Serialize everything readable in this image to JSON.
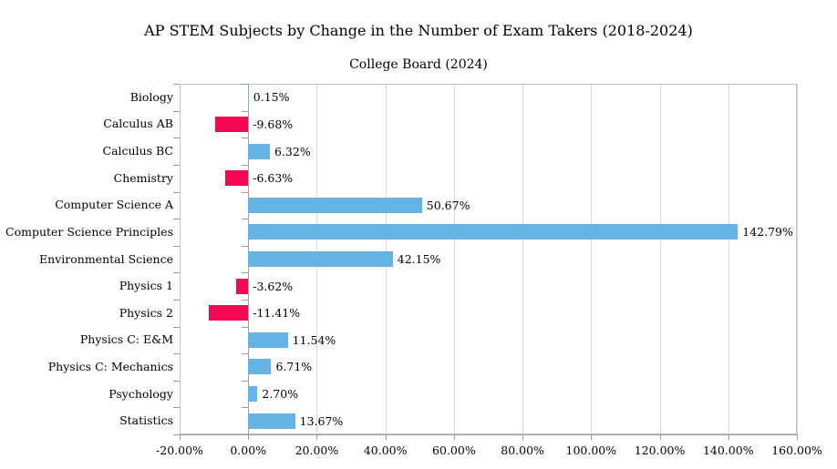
{
  "title": "AP STEM Subjects by Change in the Number of Exam Takers (2018-2024)",
  "subtitle": "College Board (2024)",
  "chart_data": {
    "type": "bar",
    "orientation": "horizontal",
    "title": "AP STEM Subjects by Change in the Number of Exam Takers (2018-2024)",
    "subtitle": "College Board (2024)",
    "categories": [
      "Biology",
      "Calculus AB",
      "Calculus BC",
      "Chemistry",
      "Computer Science A",
      "Computer Science Principles",
      "Environmental Science",
      "Physics 1",
      "Physics 2",
      "Physics C: E&M",
      "Physics C: Mechanics",
      "Psychology",
      "Statistics"
    ],
    "values": [
      0.15,
      -9.68,
      6.32,
      -6.63,
      50.67,
      142.79,
      42.15,
      -3.62,
      -11.41,
      11.54,
      6.71,
      2.7,
      13.67
    ],
    "value_labels": [
      "0.15%",
      "-9.68%",
      "6.32%",
      "-6.63%",
      "50.67%",
      "142.79%",
      "42.15%",
      "-3.62%",
      "-11.41%",
      "11.54%",
      "6.71%",
      "2.70%",
      "13.67%"
    ],
    "xlabel": "",
    "ylabel": "",
    "xlim": [
      -20,
      160
    ],
    "xtick_values": [
      -20,
      0,
      20,
      40,
      60,
      80,
      100,
      120,
      140,
      160
    ],
    "xtick_labels": [
      "-20.00%",
      "0.00%",
      "20.00%",
      "40.00%",
      "60.00%",
      "80.00%",
      "100.00%",
      "120.00%",
      "140.00%",
      "160.00%"
    ],
    "grid": "vertical",
    "legend": "none",
    "colors": {
      "positive_bar": "#63B4E5",
      "negative_bar": "#F20753",
      "gridline": "#D9D9D9",
      "plot_border": "#C2C2C2",
      "axis_line": "#9B9B9B",
      "text": "#000000",
      "background": "#FFFFFF"
    }
  }
}
